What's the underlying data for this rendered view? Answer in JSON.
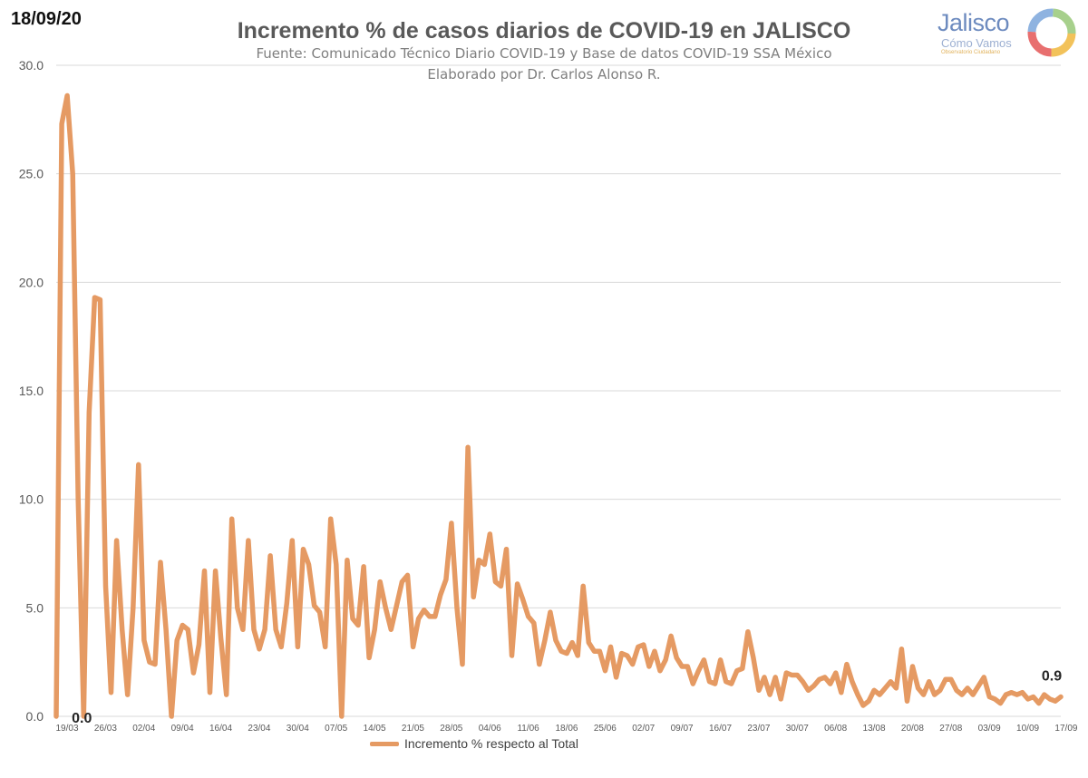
{
  "header": {
    "date": "18/09/20",
    "title": "Incremento % de casos diarios de COVID-19 en JALISCO",
    "subtitle1": "Fuente: Comunicado Técnico Diario COVID-19 y Base de datos COVID-19 SSA México",
    "subtitle2": "Elaborado por Dr. Carlos Alonso R."
  },
  "logo": {
    "name": "Jalisco",
    "tagline": "Cómo Vamos",
    "small": "Observatorio Ciudadano"
  },
  "chart_data": {
    "type": "line",
    "ylim": [
      0,
      30
    ],
    "yticks": [
      "0.0",
      "5.0",
      "10.0",
      "15.0",
      "20.0",
      "25.0",
      "30.0"
    ],
    "xticks": [
      "19/03",
      "26/03",
      "02/04",
      "09/04",
      "16/04",
      "23/04",
      "30/04",
      "07/05",
      "14/05",
      "21/05",
      "28/05",
      "04/06",
      "11/06",
      "18/06",
      "25/06",
      "02/07",
      "09/07",
      "16/07",
      "23/07",
      "30/07",
      "06/08",
      "13/08",
      "20/08",
      "27/08",
      "03/09",
      "10/09",
      "17/09"
    ],
    "grid": true,
    "colors": {
      "series": "#e59a63",
      "grid": "#d9d9d9"
    },
    "series": [
      {
        "name": "Incremento % respecto al Total",
        "values": [
          0,
          27.3,
          28.6,
          25.0,
          10.0,
          0,
          14.0,
          19.3,
          19.2,
          6.0,
          1.1,
          8.1,
          4.0,
          1.0,
          5.0,
          11.6,
          3.5,
          2.5,
          2.4,
          7.1,
          4.0,
          0,
          3.5,
          4.2,
          4.0,
          2.0,
          3.3,
          6.7,
          1.1,
          6.7,
          3.6,
          1.0,
          9.1,
          5.0,
          4.0,
          8.1,
          4.0,
          3.1,
          4.0,
          7.4,
          4.0,
          3.2,
          5.2,
          8.1,
          3.2,
          7.7,
          7.0,
          5.1,
          4.8,
          3.2,
          9.1,
          7.0,
          0,
          7.2,
          4.5,
          4.2,
          6.9,
          2.7,
          4.0,
          6.2,
          5.0,
          4.0,
          5.1,
          6.2,
          6.5,
          3.2,
          4.5,
          4.9,
          4.6,
          4.6,
          5.6,
          6.3,
          8.9,
          5.0,
          2.4,
          12.4,
          5.5,
          7.2,
          7.0,
          8.4,
          6.2,
          6.0,
          7.7,
          2.8,
          6.1,
          5.4,
          4.6,
          4.3,
          2.4,
          3.5,
          4.8,
          3.5,
          3.0,
          2.9,
          3.4,
          2.8,
          6.0,
          3.4,
          3.0,
          3.0,
          2.1,
          3.2,
          1.8,
          2.9,
          2.8,
          2.4,
          3.2,
          3.3,
          2.3,
          3.0,
          2.1,
          2.6,
          3.7,
          2.7,
          2.3,
          2.3,
          1.5,
          2.1,
          2.6,
          1.6,
          1.5,
          2.6,
          1.6,
          1.5,
          2.1,
          2.2,
          3.9,
          2.7,
          1.2,
          1.8,
          1.0,
          1.8,
          0.8,
          2.0,
          1.9,
          1.9,
          1.6,
          1.2,
          1.4,
          1.7,
          1.8,
          1.5,
          2.0,
          1.1,
          2.4,
          1.6,
          1.0,
          0.5,
          0.7,
          1.2,
          1.0,
          1.3,
          1.6,
          1.3,
          3.1,
          0.7,
          2.3,
          1.3,
          1.0,
          1.6,
          1.0,
          1.2,
          1.7,
          1.7,
          1.2,
          1.0,
          1.3,
          1.0,
          1.4,
          1.8,
          0.9,
          0.8,
          0.6,
          1.0,
          1.1,
          1.0,
          1.1,
          0.8,
          0.9,
          0.6,
          1.0,
          0.8,
          0.7,
          0.9
        ]
      }
    ],
    "annotations": [
      {
        "label": "0.0",
        "x": "24/03",
        "y": 0.0
      },
      {
        "label": "0.9",
        "x": "18/09",
        "y": 0.9
      }
    ]
  }
}
